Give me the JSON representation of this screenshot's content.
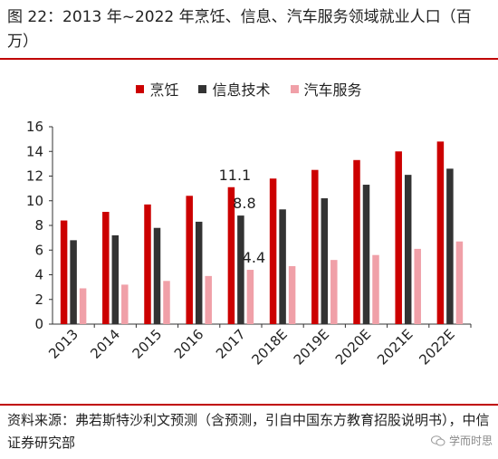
{
  "title": "图 22：2013 年~2022 年烹饪、信息、汽车服务领域就业人口（百万）",
  "source": "资料来源：弗若斯特沙利文预测（含预测，引自中国东方教育招股说明书），中信证券研究部",
  "watermark": "学而时思",
  "colors": {
    "red": "#cc0000",
    "dark": "#333333",
    "pink": "#f0a0a8",
    "rule": "#c00000"
  },
  "chart_data": {
    "type": "bar",
    "categories": [
      "2013",
      "2014",
      "2015",
      "2016",
      "2017",
      "2018E",
      "2019E",
      "2020E",
      "2021E",
      "2022E"
    ],
    "series": [
      {
        "name": "烹饪",
        "color": "#cc0000",
        "values": [
          8.4,
          9.1,
          9.7,
          10.4,
          11.1,
          11.8,
          12.5,
          13.3,
          14.0,
          14.8
        ]
      },
      {
        "name": "信息技术",
        "color": "#333333",
        "values": [
          6.8,
          7.2,
          7.8,
          8.3,
          8.8,
          9.3,
          10.2,
          11.3,
          12.1,
          12.6
        ]
      },
      {
        "name": "汽车服务",
        "color": "#f0a0a8",
        "values": [
          2.9,
          3.2,
          3.5,
          3.9,
          4.4,
          4.7,
          5.2,
          5.6,
          6.1,
          6.7
        ]
      }
    ],
    "data_labels": [
      {
        "text": "11.1",
        "category": "2017",
        "series": 0
      },
      {
        "text": "8.8",
        "category": "2017",
        "series": 1
      },
      {
        "text": "4.4",
        "category": "2017",
        "series": 2
      }
    ],
    "yticks": [
      "0",
      "2",
      "4",
      "6",
      "8",
      "10",
      "12",
      "14",
      "16"
    ],
    "ylim": [
      0,
      16
    ],
    "grid": false,
    "legend": "top"
  }
}
